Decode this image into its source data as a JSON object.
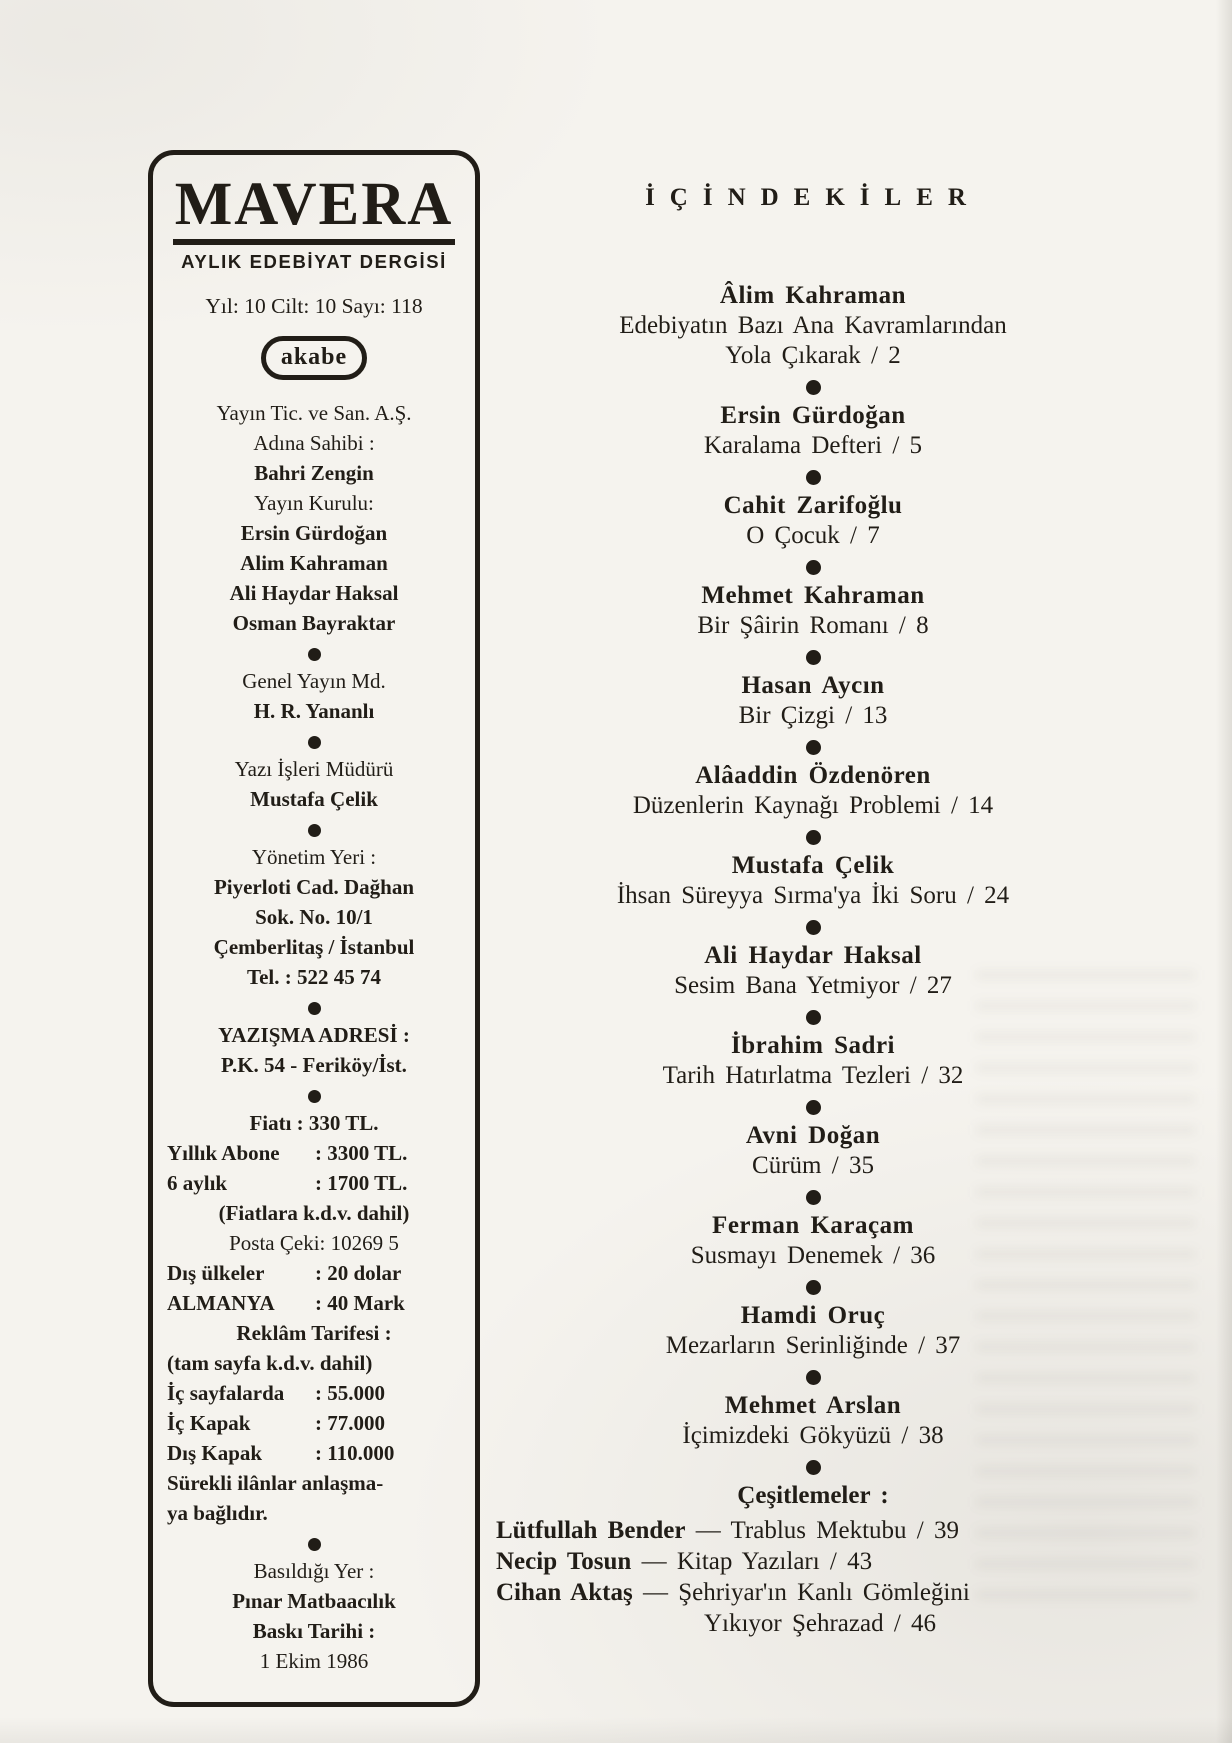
{
  "colors": {
    "paper": "#f5f3ee",
    "ink": "#211d17"
  },
  "masthead": {
    "logo": "MAVERA",
    "tagline": "AYLIK EDEBİYAT DERGİSİ",
    "issue": "Yıl: 10 Cilt: 10 Sayı: 118",
    "badge": "akabe",
    "staff": [
      "Yayın Tic. ve San. A.Ş.",
      "Adına Sahibi :",
      "Bahri Zengin",
      "Yayın Kurulu:",
      "Ersin Gürdoğan",
      "Alim Kahraman",
      "Ali Haydar Haksal",
      "Osman Bayraktar",
      "Genel Yayın Md.",
      "H. R. Yananlı",
      "Yazı İşleri Müdürü",
      "Mustafa Çelik",
      "Yönetim Yeri :",
      "Piyerloti Cad. Dağhan",
      "Sok. No. 10/1",
      "Çemberlitaş / İstanbul",
      "Tel. : 522 45 74",
      "YAZIŞMA ADRESİ :",
      "P.K. 54 - Feriköy/İst."
    ]
  },
  "pricing": {
    "line_fiati": "Fiatı : 330 TL.",
    "row_abone": {
      "l": "Yıllık Abone",
      "v": ": 3300 TL."
    },
    "row_6aylik": {
      "l": "6 aylık",
      "v": ": 1700 TL."
    },
    "line_kdv": "(Fiatlara k.d.v. dahil)",
    "line_posta": "Posta Çeki: 10269 5",
    "row_dis": {
      "l": "Dış ülkeler",
      "v": ": 20 dolar"
    },
    "row_almanya": {
      "l": "ALMANYA",
      "v": ": 40 Mark"
    },
    "line_reklam": "Reklâm Tarifesi :",
    "line_tamsayfa": "(tam sayfa k.d.v. dahil)",
    "row_ic_sayfa": {
      "l": "İç sayfalarda",
      "v": ": 55.000"
    },
    "row_ic_kapak": {
      "l": "İç Kapak",
      "v": ": 77.000"
    },
    "row_dis_kapak": {
      "l": "Dış Kapak",
      "v": ": 110.000"
    },
    "line_surekli_1": "Sürekli ilânlar anlaşma-",
    "line_surekli_2": "ya bağlıdır."
  },
  "imprint": {
    "line_basildigi": "Basıldığı Yer :",
    "line_matbaa": "Pınar Matbaacılık",
    "line_baski": "Baskı Tarihi :",
    "line_tarih": "1 Ekim 1986"
  },
  "toc": {
    "heading": "İÇİNDEKİLER",
    "entries": [
      {
        "author": "Âlim Kahraman",
        "line": "Edebiyatın Bazı Ana Kavramlarından",
        "line2": "Yola Çıkarak / 2"
      },
      {
        "author": "Ersin Gürdoğan",
        "line": "Karalama Defteri / 5"
      },
      {
        "author": "Cahit Zarifoğlu",
        "line": "O Çocuk / 7"
      },
      {
        "author": "Mehmet Kahraman",
        "line": "Bir Şâirin Romanı / 8"
      },
      {
        "author": "Hasan Aycın",
        "line": "Bir Çizgi / 13"
      },
      {
        "author": "Alâaddin Özdenören",
        "line": "Düzenlerin Kaynağı Problemi / 14"
      },
      {
        "author": "Mustafa Çelik",
        "line": "İhsan Süreyya Sırma'ya İki Soru / 24"
      },
      {
        "author": "Ali Haydar Haksal",
        "line": "Sesim Bana Yetmiyor / 27"
      },
      {
        "author": "İbrahim Sadri",
        "line": "Tarih Hatırlatma Tezleri / 32"
      },
      {
        "author": "Avni Doğan",
        "line": "Cürüm / 35"
      },
      {
        "author": "Ferman Karaçam",
        "line": "Susmayı Denemek / 36"
      },
      {
        "author": "Hamdi Oruç",
        "line": "Mezarların Serinliğinde / 37"
      },
      {
        "author": "Mehmet Arslan",
        "line": "İçimizdeki Gökyüzü / 38"
      }
    ],
    "misc_heading": "Çeşitlemeler :",
    "misc": [
      {
        "author": "Lütfullah Bender",
        "rest": "— Trablus Mektubu / 39"
      },
      {
        "author": "Necip Tosun",
        "rest": "— Kitap Yazıları / 43"
      },
      {
        "author": "Cihan Aktaş",
        "rest": "— Şehriyar'ın Kanlı Gömleğini",
        "rest2": "Yıkıyor Şehrazad / 46"
      }
    ]
  }
}
